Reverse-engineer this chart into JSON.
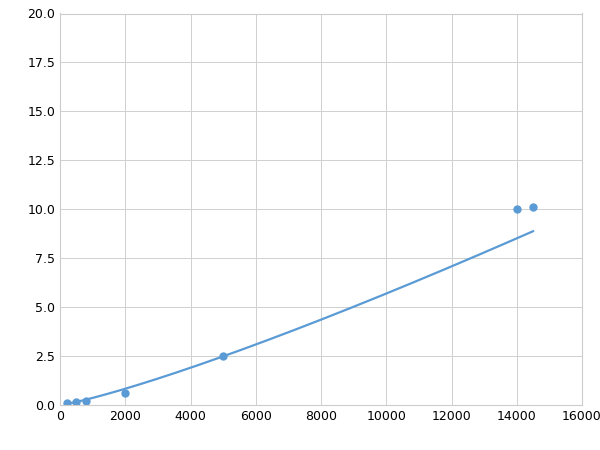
{
  "x": [
    200,
    500,
    800,
    2000,
    5000,
    14000,
    14500
  ],
  "y": [
    0.08,
    0.15,
    0.2,
    0.6,
    2.5,
    10.0,
    10.1
  ],
  "line_color": "#5b9bd5",
  "marker_color": "#5b9bd5",
  "marker_style": "o",
  "marker_size": 5,
  "line_width": 1.6,
  "xlim": [
    0,
    16000
  ],
  "ylim": [
    0,
    20
  ],
  "xticks": [
    0,
    2000,
    4000,
    6000,
    8000,
    10000,
    12000,
    14000,
    16000
  ],
  "yticks": [
    0.0,
    2.5,
    5.0,
    7.5,
    10.0,
    12.5,
    15.0,
    17.5,
    20.0
  ],
  "grid": true,
  "background_color": "#ffffff",
  "figure_bg": "#ffffff",
  "figsize": [
    6.0,
    4.5
  ],
  "dpi": 100
}
